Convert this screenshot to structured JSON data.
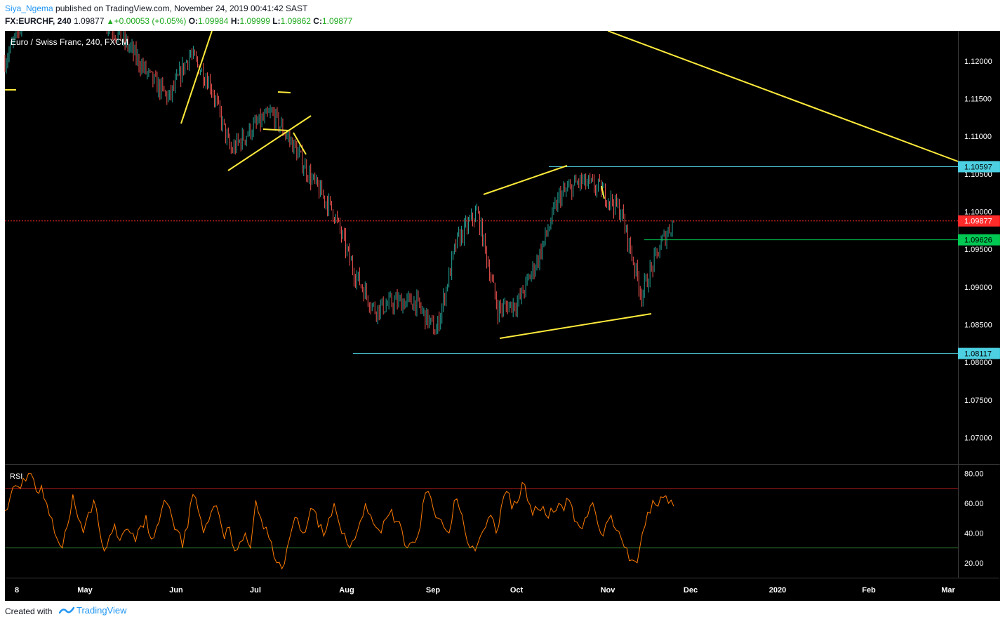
{
  "header": {
    "author": "Siya_Ngema",
    "published_text": "published on TradingView.com, November 24, 2019 00:41:42 SAST",
    "symbol": "FX:EURCHF, 240",
    "last": "1.09877",
    "change": "+0.00053 (+0.05%)",
    "open_label": "O:",
    "open": "1.09984",
    "high_label": "H:",
    "high": "1.09999",
    "low_label": "L:",
    "low": "1.09862",
    "close_label": "C:",
    "close": "1.09877"
  },
  "chart_title": "Euro / Swiss Franc, 240, FXCM",
  "rsi_label": "RSI",
  "footer": {
    "created": "Created with",
    "brand": "TradingView"
  },
  "colors": {
    "background": "#000000",
    "up": "#26a69a",
    "down": "#ef5350",
    "drawing": "#ffeb3b",
    "cyan_line": "#4dd0e1",
    "green_line": "#00c853",
    "rsi_line": "#ff7b00",
    "rsi_upper": "#b71c1c",
    "rsi_lower": "#2e7d32",
    "last_price": "#ff2a2a"
  },
  "chart_data": {
    "type": "line",
    "x_tick_labels": [
      "8",
      "May",
      "Jun",
      "Jul",
      "Aug",
      "Sep",
      "Oct",
      "Nov",
      "Dec",
      "2020",
      "Feb",
      "Mar"
    ],
    "y_tick_labels": [
      "1.12000",
      "1.11500",
      "1.11000",
      "1.10500",
      "1.10000",
      "1.09500",
      "1.09000",
      "1.08500",
      "1.08000",
      "1.07500",
      "1.07000"
    ],
    "ylim": [
      1.0665,
      1.124
    ],
    "price_labels": [
      {
        "name": "resistance",
        "value": "1.10597",
        "level": 1.10597
      },
      {
        "name": "last",
        "value": "1.09877",
        "level": 1.09877
      },
      {
        "name": "support-green",
        "value": "1.09626",
        "level": 1.09626
      },
      {
        "name": "support",
        "value": "1.08117",
        "level": 1.08117
      }
    ],
    "price_series": {
      "name": "EURCHF",
      "dates": [
        "2019-04-08",
        "2019-04-15",
        "2019-04-22",
        "2019-04-29",
        "2019-05-06",
        "2019-05-13",
        "2019-05-20",
        "2019-05-27",
        "2019-06-03",
        "2019-06-10",
        "2019-06-17",
        "2019-06-24",
        "2019-07-01",
        "2019-07-08",
        "2019-07-15",
        "2019-07-22",
        "2019-07-29",
        "2019-08-05",
        "2019-08-12",
        "2019-08-19",
        "2019-08-26",
        "2019-09-02",
        "2019-09-09",
        "2019-09-16",
        "2019-09-23",
        "2019-09-30",
        "2019-10-07",
        "2019-10-14",
        "2019-10-21",
        "2019-10-28",
        "2019-11-04",
        "2019-11-11",
        "2019-11-18",
        "2019-11-22"
      ],
      "values": [
        1.12,
        1.126,
        1.13,
        1.129,
        1.127,
        1.125,
        1.122,
        1.118,
        1.115,
        1.121,
        1.117,
        1.108,
        1.111,
        1.113,
        1.109,
        1.104,
        1.1,
        1.092,
        1.087,
        1.088,
        1.088,
        1.084,
        1.096,
        1.1,
        1.087,
        1.088,
        1.094,
        1.102,
        1.104,
        1.103,
        1.1,
        1.089,
        1.096,
        1.0988
      ]
    },
    "rsi": {
      "y_tick_labels": [
        "80.00",
        "60.00",
        "40.00",
        "20.00"
      ],
      "upper": 70,
      "lower": 30,
      "ylim": [
        10,
        86
      ],
      "values": [
        55,
        64,
        72,
        70,
        75,
        80,
        68,
        72,
        60,
        50,
        36,
        30,
        45,
        66,
        50,
        40,
        54,
        62,
        44,
        28,
        38,
        46,
        35,
        42,
        40,
        34,
        45,
        52,
        36,
        44,
        56,
        60,
        50,
        42,
        30,
        44,
        66,
        55,
        40,
        48,
        58,
        52,
        36,
        44,
        28,
        34,
        40,
        30,
        62,
        50,
        44,
        34,
        20,
        16,
        30,
        44,
        50,
        40,
        48,
        56,
        44,
        38,
        50,
        60,
        46,
        40,
        30,
        36,
        48,
        60,
        52,
        44,
        40,
        50,
        56,
        48,
        42,
        30,
        34,
        38,
        60,
        68,
        56,
        50,
        44,
        40,
        62,
        56,
        42,
        30,
        28,
        38,
        44,
        52,
        40,
        58,
        68,
        56,
        60,
        74,
        62,
        52,
        56,
        58,
        50,
        54,
        60,
        55,
        62,
        48,
        44,
        50,
        58,
        54,
        40,
        46,
        52,
        42,
        36,
        30,
        22,
        20,
        40,
        54,
        62,
        58,
        64,
        60,
        58
      ]
    }
  }
}
